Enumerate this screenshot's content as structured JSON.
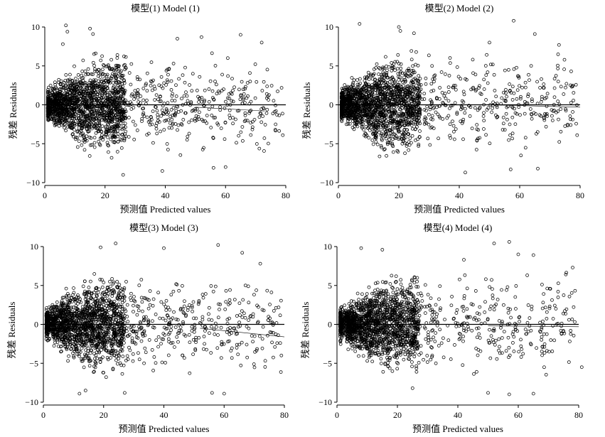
{
  "chart_data": [
    {
      "type": "scatter",
      "title": "模型(1) Model (1)",
      "xlabel": "预测值 Predicted values",
      "ylabel": "残差 Residuals",
      "xlim": [
        0,
        80
      ],
      "ylim": [
        -10,
        10
      ],
      "xticks": [
        "0",
        "20",
        "40",
        "60",
        "80"
      ],
      "yticks": [
        "10",
        "5",
        "0",
        "−5",
        "−10"
      ],
      "reference_line_y": 0,
      "fit_line": [
        [
          50,
          -0.3
        ],
        [
          73,
          -0.8
        ]
      ],
      "cloud": {
        "n": 2000,
        "seed": 11,
        "x_range": [
          1,
          79
        ],
        "x_mode": 15,
        "x_tail": 2.3,
        "spread_near": 1.1,
        "spread_far": 3.6,
        "rise_x": 15
      },
      "outliers": [
        [
          7,
          10.2
        ],
        [
          7.5,
          9.4
        ],
        [
          15,
          9.8
        ],
        [
          16,
          9.1
        ],
        [
          6,
          7.8
        ],
        [
          26,
          -9.0
        ],
        [
          39,
          -8.5
        ],
        [
          56,
          -8.1
        ],
        [
          60,
          -8.0
        ],
        [
          65,
          9.0
        ],
        [
          72,
          8.0
        ],
        [
          79,
          -3.9
        ],
        [
          44,
          8.5
        ],
        [
          52,
          8.7
        ]
      ]
    },
    {
      "type": "scatter",
      "title": "模型(2) Model (2)",
      "xlabel": "预测值 Predicted values",
      "ylabel": "残差 Residuals",
      "xlim": [
        0,
        80
      ],
      "ylim": [
        -10,
        10
      ],
      "xticks": [
        "0",
        "20",
        "40",
        "60",
        "80"
      ],
      "yticks": [
        "10",
        "5",
        "0",
        "−5",
        "−10"
      ],
      "reference_line_y": 0,
      "fit_line": [
        [
          50,
          0.0
        ],
        [
          80,
          -0.3
        ]
      ],
      "cloud": {
        "n": 2000,
        "seed": 22,
        "x_range": [
          1,
          79
        ],
        "x_mode": 15,
        "x_tail": 2.3,
        "spread_near": 1.1,
        "spread_far": 3.6,
        "rise_x": 15
      },
      "outliers": [
        [
          7,
          10.4
        ],
        [
          20,
          10.0
        ],
        [
          20.5,
          9.5
        ],
        [
          25,
          9.2
        ],
        [
          58,
          10.8
        ],
        [
          65,
          9.1
        ],
        [
          73,
          7.7
        ],
        [
          42,
          -8.7
        ],
        [
          57,
          -8.3
        ],
        [
          66,
          -8.2
        ],
        [
          79,
          -3.9
        ],
        [
          50,
          8.0
        ]
      ]
    },
    {
      "type": "scatter",
      "title": "模型(3) Model (3)",
      "xlabel": "预测值 Predicted values",
      "ylabel": "残差 Residuals",
      "xlim": [
        0,
        80
      ],
      "ylim": [
        -10,
        10
      ],
      "xticks": [
        "0",
        "20",
        "40",
        "60",
        "80"
      ],
      "yticks": [
        "10",
        "5",
        "0",
        "−5",
        "−10"
      ],
      "reference_line_y": 0,
      "fit_line": [
        [
          52,
          -0.5
        ],
        [
          80,
          -1.6
        ]
      ],
      "cloud": {
        "n": 2000,
        "seed": 33,
        "x_range": [
          1,
          79
        ],
        "x_mode": 15,
        "x_tail": 2.3,
        "spread_near": 1.1,
        "spread_far": 3.6,
        "rise_x": 15
      },
      "outliers": [
        [
          24,
          10.4
        ],
        [
          40,
          9.8
        ],
        [
          58,
          10.2
        ],
        [
          19,
          9.9
        ],
        [
          72,
          7.8
        ],
        [
          12,
          -8.9
        ],
        [
          14,
          -8.5
        ],
        [
          27,
          -8.8
        ],
        [
          56,
          -8.8
        ],
        [
          60,
          -8.9
        ],
        [
          79,
          -4.0
        ],
        [
          66,
          9.2
        ]
      ]
    },
    {
      "type": "scatter",
      "title": "模型(4) Model (4)",
      "xlabel": "预测值 Predicted values",
      "ylabel": "残差 Residuals",
      "xlim": [
        0,
        80
      ],
      "ylim": [
        -10,
        10
      ],
      "xticks": [
        "0",
        "20",
        "40",
        "60",
        "80"
      ],
      "yticks": [
        "10",
        "5",
        "0",
        "−5",
        "−10"
      ],
      "reference_line_y": 0,
      "fit_line": [
        [
          50,
          -0.2
        ],
        [
          80,
          -0.3
        ]
      ],
      "cloud": {
        "n": 2000,
        "seed": 44,
        "x_range": [
          1,
          79
        ],
        "x_mode": 15,
        "x_tail": 2.3,
        "spread_near": 1.1,
        "spread_far": 3.6,
        "rise_x": 15
      },
      "outliers": [
        [
          8,
          9.8
        ],
        [
          15,
          9.6
        ],
        [
          52,
          10.4
        ],
        [
          57,
          10.6
        ],
        [
          60,
          9.0
        ],
        [
          65,
          8.9
        ],
        [
          78,
          7.3
        ],
        [
          25,
          -8.2
        ],
        [
          50,
          -8.8
        ],
        [
          57,
          -9.0
        ],
        [
          65,
          -8.9
        ],
        [
          81,
          -5.5
        ],
        [
          42,
          8.3
        ]
      ]
    }
  ]
}
